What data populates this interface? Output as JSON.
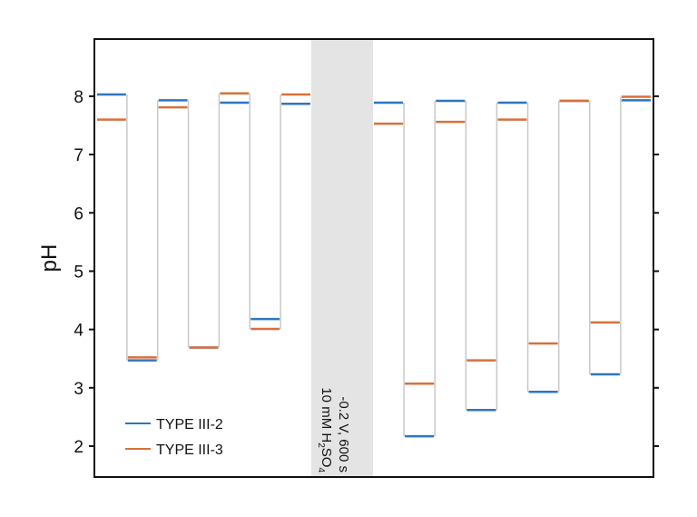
{
  "chart_data": {
    "type": "line",
    "title": "",
    "xlabel": "",
    "ylabel": "pH",
    "ylim": [
      1.47,
      8.98
    ],
    "yticks": [
      "2",
      "3",
      "4",
      "5",
      "6",
      "7",
      "8"
    ],
    "grid": false,
    "legend_position": "bottom-left",
    "annotation": {
      "line1": "-0.2 V, 600 s",
      "line2_main": "10 mM H",
      "line2_sub1": "2",
      "line2_mid": "SO",
      "line2_sub2": "4"
    },
    "series": [
      {
        "name": "TYPE III-2",
        "color": "#2e75c0",
        "before": [
          8.03,
          3.47,
          7.93,
          3.69,
          7.89,
          4.18,
          7.87
        ],
        "after": [
          7.89,
          2.17,
          7.92,
          2.62,
          7.89,
          2.93,
          7.92,
          3.23,
          7.93
        ]
      },
      {
        "name": "TYPE III-3",
        "color": "#d9703a",
        "before": [
          7.6,
          3.52,
          7.81,
          3.69,
          8.05,
          4.01,
          8.03
        ],
        "after": [
          7.53,
          3.07,
          7.56,
          3.47,
          7.6,
          3.76,
          7.92,
          4.12,
          7.99
        ]
      }
    ],
    "band_color": "#e4e4e4",
    "connector_color": "#c8c8c8"
  }
}
